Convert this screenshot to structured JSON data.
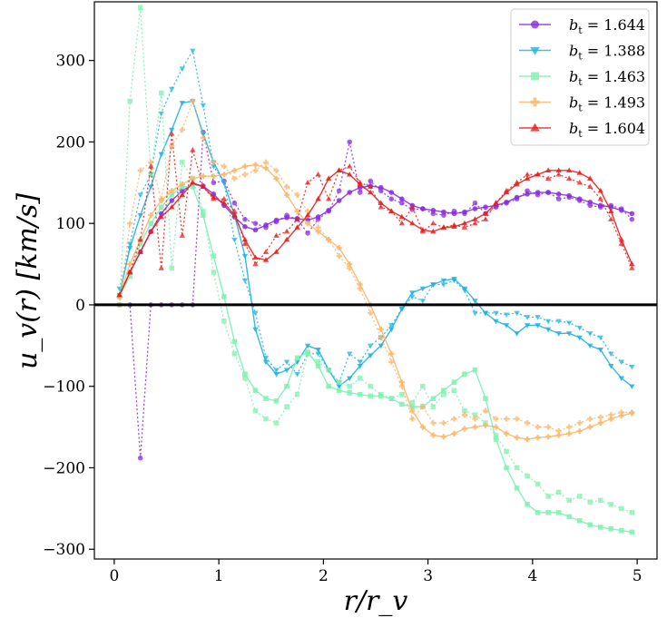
{
  "chart_data": {
    "type": "line",
    "title": "",
    "xlabel": "r/r_v",
    "ylabel": "u_v(r) [km/s]",
    "xlim": [
      -0.19,
      5.19
    ],
    "ylim": [
      -312,
      372
    ],
    "xticks": [
      0,
      1,
      2,
      3,
      4,
      5
    ],
    "yticks": [
      -300,
      -200,
      -100,
      0,
      100,
      200,
      300
    ],
    "xtick_labels": [
      "0",
      "1",
      "2",
      "3",
      "4",
      "5"
    ],
    "ytick_labels": [
      "−300",
      "−200",
      "−100",
      "0",
      "100",
      "200",
      "300"
    ],
    "zero_line": 0,
    "legend_position": "top-right",
    "series": [
      {
        "name": "b_t = 1.644",
        "legend_prefix": "b",
        "legend_sub": "t",
        "legend_value": " = 1.644",
        "color": "#8b2be2",
        "marker": "circle",
        "x": [
          0.05,
          0.15,
          0.25,
          0.35,
          0.45,
          0.55,
          0.65,
          0.75,
          0.85,
          0.95,
          1.05,
          1.15,
          1.25,
          1.35,
          1.45,
          1.55,
          1.65,
          1.75,
          1.85,
          1.95,
          2.05,
          2.15,
          2.25,
          2.35,
          2.45,
          2.55,
          2.65,
          2.75,
          2.85,
          2.95,
          3.05,
          3.15,
          3.25,
          3.35,
          3.45,
          3.55,
          3.65,
          3.75,
          3.85,
          3.95,
          4.05,
          4.15,
          4.25,
          4.35,
          4.45,
          4.55,
          4.65,
          4.75,
          4.85,
          4.95
        ],
        "smooth": [
          10,
          40,
          65,
          90,
          112,
          128,
          140,
          148,
          146,
          136,
          122,
          108,
          96,
          92,
          98,
          104,
          107,
          106,
          104,
          108,
          116,
          128,
          138,
          144,
          146,
          144,
          138,
          130,
          122,
          118,
          116,
          114,
          112,
          114,
          118,
          120,
          122,
          126,
          132,
          136,
          138,
          138,
          136,
          134,
          130,
          126,
          122,
          120,
          116,
          112
        ],
        "raw": [
          0,
          0,
          -188,
          0,
          0,
          0,
          0,
          0,
          212,
          150,
          152,
          125,
          105,
          100,
          95,
          102,
          110,
          105,
          88,
          105,
          115,
          140,
          200,
          138,
          152,
          140,
          130,
          125,
          117,
          118,
          112,
          110,
          115,
          112,
          125,
          112,
          120,
          125,
          130,
          140,
          135,
          138,
          130,
          132,
          128,
          122,
          120,
          122,
          118,
          105
        ]
      },
      {
        "name": "b_t = 1.388",
        "legend_prefix": "b",
        "legend_sub": "t",
        "legend_value": " = 1.388",
        "color": "#1fb3e0",
        "marker": "triangle-down",
        "x": [
          0.05,
          0.15,
          0.25,
          0.35,
          0.45,
          0.55,
          0.65,
          0.75,
          0.85,
          0.95,
          1.05,
          1.15,
          1.25,
          1.35,
          1.45,
          1.55,
          1.65,
          1.75,
          1.85,
          1.95,
          2.05,
          2.15,
          2.25,
          2.35,
          2.45,
          2.55,
          2.65,
          2.75,
          2.85,
          2.95,
          3.05,
          3.15,
          3.25,
          3.35,
          3.45,
          3.55,
          3.65,
          3.75,
          3.85,
          3.95,
          4.05,
          4.15,
          4.25,
          4.35,
          4.45,
          4.55,
          4.65,
          4.75,
          4.85,
          4.95
        ],
        "smooth": [
          12,
          70,
          110,
          145,
          185,
          215,
          248,
          250,
          210,
          175,
          150,
          110,
          60,
          -30,
          -70,
          -85,
          -80,
          -70,
          -50,
          -55,
          -80,
          -100,
          -90,
          -75,
          -62,
          -50,
          -30,
          -5,
          15,
          20,
          25,
          30,
          32,
          20,
          5,
          -10,
          -20,
          -25,
          -35,
          -25,
          -25,
          -30,
          -35,
          -35,
          -40,
          -50,
          -55,
          -75,
          -90,
          -100
        ],
        "raw": [
          20,
          75,
          135,
          160,
          235,
          265,
          290,
          312,
          245,
          170,
          150,
          80,
          30,
          -10,
          -65,
          -80,
          -70,
          -85,
          -60,
          -60,
          -80,
          -95,
          -60,
          -70,
          -50,
          -40,
          -25,
          -5,
          10,
          5,
          25,
          25,
          30,
          18,
          -10,
          -10,
          -10,
          -12,
          -10,
          -15,
          -15,
          -20,
          -20,
          -22,
          -28,
          -35,
          -40,
          -60,
          -70,
          -76
        ]
      },
      {
        "name": "b_t = 1.463",
        "legend_prefix": "b",
        "legend_sub": "t",
        "legend_value": " = 1.463",
        "color": "#80f0b2",
        "marker": "square",
        "x": [
          0.05,
          0.15,
          0.25,
          0.35,
          0.45,
          0.55,
          0.65,
          0.75,
          0.85,
          0.95,
          1.05,
          1.15,
          1.25,
          1.35,
          1.45,
          1.55,
          1.65,
          1.75,
          1.85,
          1.95,
          2.05,
          2.15,
          2.25,
          2.35,
          2.45,
          2.55,
          2.65,
          2.75,
          2.85,
          2.95,
          3.05,
          3.15,
          3.25,
          3.35,
          3.45,
          3.55,
          3.65,
          3.75,
          3.85,
          3.95,
          4.05,
          4.15,
          4.25,
          4.35,
          4.45,
          4.55,
          4.65,
          4.75,
          4.85,
          4.95
        ],
        "smooth": [
          10,
          35,
          75,
          100,
          120,
          135,
          145,
          145,
          110,
          60,
          10,
          -45,
          -85,
          -105,
          -115,
          -118,
          -100,
          -65,
          -58,
          -75,
          -100,
          -105,
          -108,
          -110,
          -112,
          -112,
          -115,
          -122,
          -125,
          -125,
          -115,
          -105,
          -95,
          -85,
          -80,
          -115,
          -165,
          -200,
          -225,
          -245,
          -255,
          -255,
          -255,
          -260,
          -265,
          -270,
          -273,
          -275,
          -277,
          -279
        ],
        "raw": [
          0,
          250,
          365,
          160,
          260,
          45,
          175,
          155,
          115,
          40,
          -20,
          -60,
          -90,
          -130,
          -140,
          -145,
          -125,
          -110,
          -60,
          -70,
          -80,
          -95,
          -100,
          -90,
          -100,
          -110,
          -115,
          -110,
          -120,
          -100,
          -125,
          -110,
          -105,
          -130,
          -135,
          -145,
          -160,
          -180,
          -200,
          -210,
          -220,
          -235,
          -230,
          -240,
          -235,
          -242,
          -240,
          -245,
          -250,
          -255
        ]
      },
      {
        "name": "b_t = 1.493",
        "legend_prefix": "b",
        "legend_sub": "t",
        "legend_value": " = 1.493",
        "color": "#f9b66a",
        "marker": "plus",
        "x": [
          0.05,
          0.15,
          0.25,
          0.35,
          0.45,
          0.55,
          0.65,
          0.75,
          0.85,
          0.95,
          1.05,
          1.15,
          1.25,
          1.35,
          1.45,
          1.55,
          1.65,
          1.75,
          1.85,
          1.95,
          2.05,
          2.15,
          2.25,
          2.35,
          2.45,
          2.55,
          2.65,
          2.75,
          2.85,
          2.95,
          3.05,
          3.15,
          3.25,
          3.35,
          3.45,
          3.55,
          3.65,
          3.75,
          3.85,
          3.95,
          4.05,
          4.15,
          4.25,
          4.35,
          4.45,
          4.55,
          4.65,
          4.75,
          4.85,
          4.95
        ],
        "smooth": [
          10,
          50,
          80,
          110,
          128,
          140,
          148,
          155,
          158,
          158,
          160,
          165,
          170,
          172,
          168,
          155,
          135,
          115,
          100,
          90,
          80,
          70,
          50,
          25,
          0,
          -30,
          -60,
          -95,
          -130,
          -150,
          -160,
          -162,
          -158,
          -152,
          -150,
          -148,
          -150,
          -158,
          -163,
          -165,
          -163,
          -162,
          -160,
          -158,
          -155,
          -150,
          -145,
          -140,
          -136,
          -133
        ],
        "raw": [
          0,
          100,
          165,
          175,
          130,
          195,
          215,
          250,
          205,
          175,
          170,
          155,
          160,
          165,
          175,
          165,
          145,
          135,
          115,
          95,
          80,
          60,
          45,
          20,
          -10,
          -40,
          -70,
          -100,
          -140,
          -125,
          -145,
          -145,
          -140,
          -135,
          -140,
          -130,
          -140,
          -140,
          -140,
          -145,
          -150,
          -150,
          -155,
          -150,
          -145,
          -140,
          -138,
          -135,
          -132,
          -132
        ]
      },
      {
        "name": "b_t = 1.604",
        "legend_prefix": "b",
        "legend_sub": "t",
        "legend_value": " = 1.604",
        "color": "#e81e1e",
        "marker": "triangle-up",
        "x": [
          0.05,
          0.15,
          0.25,
          0.35,
          0.45,
          0.55,
          0.65,
          0.75,
          0.85,
          0.95,
          1.05,
          1.15,
          1.25,
          1.35,
          1.45,
          1.55,
          1.65,
          1.75,
          1.85,
          1.95,
          2.05,
          2.15,
          2.25,
          2.35,
          2.45,
          2.55,
          2.65,
          2.75,
          2.85,
          2.95,
          3.05,
          3.15,
          3.25,
          3.35,
          3.45,
          3.55,
          3.65,
          3.75,
          3.85,
          3.95,
          4.05,
          4.15,
          4.25,
          4.35,
          4.45,
          4.55,
          4.65,
          4.75,
          4.85,
          4.95
        ],
        "smooth": [
          12,
          40,
          65,
          90,
          108,
          120,
          135,
          150,
          145,
          132,
          125,
          110,
          80,
          58,
          55,
          65,
          80,
          95,
          110,
          130,
          155,
          165,
          160,
          148,
          138,
          125,
          115,
          108,
          100,
          92,
          90,
          95,
          96,
          100,
          105,
          112,
          125,
          138,
          148,
          155,
          160,
          165,
          165,
          165,
          162,
          155,
          140,
          115,
          80,
          50
        ],
        "raw": [
          12,
          40,
          80,
          170,
          45,
          210,
          85,
          190,
          145,
          130,
          130,
          115,
          75,
          50,
          65,
          85,
          90,
          105,
          150,
          160,
          130,
          165,
          170,
          150,
          145,
          120,
          115,
          100,
          120,
          90,
          100,
          95,
          98,
          95,
          100,
          105,
          125,
          140,
          150,
          160,
          160,
          155,
          160,
          155,
          150,
          145,
          130,
          105,
          75,
          45
        ]
      }
    ]
  }
}
